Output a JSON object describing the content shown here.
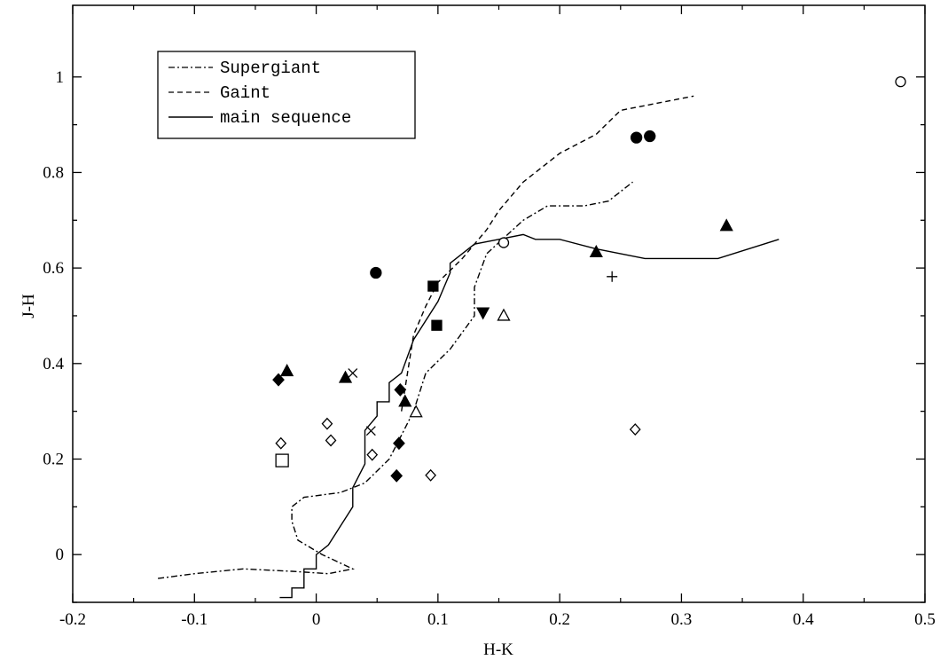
{
  "chart_data": {
    "type": "scatter",
    "xlabel": "H-K",
    "ylabel": "J-H",
    "xlim": [
      -0.2,
      0.5
    ],
    "ylim": [
      -0.1,
      1.15
    ],
    "x_ticks": [
      "-0.2",
      "-0.1",
      "0",
      "0.1",
      "0.2",
      "0.3",
      "0.4",
      "0.5"
    ],
    "y_ticks": [
      "0",
      "0.2",
      "0.4",
      "0.6",
      "0.8",
      "1"
    ],
    "grid": false,
    "legend_position": "top-left",
    "series": [
      {
        "name": "Supergiant",
        "style": "dash-dot",
        "points": [
          [
            -0.13,
            -0.05
          ],
          [
            -0.1,
            -0.04
          ],
          [
            -0.06,
            -0.03
          ],
          [
            -0.02,
            -0.035
          ],
          [
            0.01,
            -0.04
          ],
          [
            0.03,
            -0.03
          ],
          [
            0.005,
            0.0
          ],
          [
            -0.015,
            0.03
          ],
          [
            -0.02,
            0.07
          ],
          [
            -0.02,
            0.1
          ],
          [
            -0.01,
            0.12
          ],
          [
            0.02,
            0.13
          ],
          [
            0.04,
            0.15
          ],
          [
            0.06,
            0.2
          ],
          [
            0.07,
            0.25
          ],
          [
            0.08,
            0.3
          ],
          [
            0.09,
            0.38
          ],
          [
            0.11,
            0.43
          ],
          [
            0.13,
            0.5
          ],
          [
            0.13,
            0.56
          ],
          [
            0.14,
            0.63
          ],
          [
            0.17,
            0.7
          ],
          [
            0.19,
            0.73
          ],
          [
            0.22,
            0.73
          ],
          [
            0.24,
            0.74
          ],
          [
            0.26,
            0.78
          ]
        ]
      },
      {
        "name": "Gaint",
        "style": "dashed",
        "points": [
          [
            0.07,
            0.3
          ],
          [
            0.075,
            0.38
          ],
          [
            0.08,
            0.46
          ],
          [
            0.09,
            0.52
          ],
          [
            0.1,
            0.57
          ],
          [
            0.12,
            0.62
          ],
          [
            0.14,
            0.68
          ],
          [
            0.15,
            0.72
          ],
          [
            0.17,
            0.78
          ],
          [
            0.2,
            0.84
          ],
          [
            0.23,
            0.88
          ],
          [
            0.25,
            0.93
          ],
          [
            0.29,
            0.95
          ],
          [
            0.31,
            0.96
          ]
        ]
      },
      {
        "name": "main sequence",
        "style": "solid",
        "points": [
          [
            -0.03,
            -0.09
          ],
          [
            -0.02,
            -0.09
          ],
          [
            -0.02,
            -0.07
          ],
          [
            -0.01,
            -0.07
          ],
          [
            -0.01,
            -0.03
          ],
          [
            0.0,
            -0.03
          ],
          [
            0.0,
            0.0
          ],
          [
            0.01,
            0.02
          ],
          [
            0.02,
            0.06
          ],
          [
            0.03,
            0.1
          ],
          [
            0.03,
            0.14
          ],
          [
            0.04,
            0.19
          ],
          [
            0.04,
            0.26
          ],
          [
            0.05,
            0.29
          ],
          [
            0.05,
            0.32
          ],
          [
            0.06,
            0.32
          ],
          [
            0.06,
            0.36
          ],
          [
            0.07,
            0.38
          ],
          [
            0.08,
            0.45
          ],
          [
            0.1,
            0.53
          ],
          [
            0.11,
            0.59
          ],
          [
            0.11,
            0.61
          ],
          [
            0.13,
            0.65
          ],
          [
            0.15,
            0.66
          ],
          [
            0.17,
            0.67
          ],
          [
            0.18,
            0.66
          ],
          [
            0.2,
            0.66
          ],
          [
            0.23,
            0.64
          ],
          [
            0.27,
            0.62
          ],
          [
            0.33,
            0.62
          ],
          [
            0.38,
            0.66
          ]
        ]
      }
    ],
    "markers": [
      {
        "symbol": "circle-filled",
        "points": [
          [
            0.049,
            0.59
          ],
          [
            0.263,
            0.873
          ],
          [
            0.274,
            0.876
          ]
        ]
      },
      {
        "symbol": "circle-open",
        "points": [
          [
            0.154,
            0.653
          ],
          [
            0.48,
            0.99
          ]
        ]
      },
      {
        "symbol": "square-filled",
        "points": [
          [
            0.096,
            0.562
          ],
          [
            0.099,
            0.48
          ]
        ]
      },
      {
        "symbol": "square-open",
        "points": [
          [
            -0.028,
            0.197
          ]
        ]
      },
      {
        "symbol": "triangle-up-filled",
        "points": [
          [
            -0.024,
            0.384
          ],
          [
            0.024,
            0.37
          ],
          [
            0.073,
            0.32
          ],
          [
            0.23,
            0.633
          ],
          [
            0.337,
            0.688
          ]
        ]
      },
      {
        "symbol": "triangle-up-open",
        "points": [
          [
            0.154,
            0.5
          ],
          [
            0.082,
            0.298
          ]
        ]
      },
      {
        "symbol": "triangle-down-filled",
        "points": [
          [
            0.137,
            0.507
          ]
        ]
      },
      {
        "symbol": "diamond-filled",
        "points": [
          [
            -0.031,
            0.366
          ],
          [
            0.069,
            0.345
          ],
          [
            0.068,
            0.233
          ],
          [
            0.066,
            0.165
          ]
        ]
      },
      {
        "symbol": "diamond-open",
        "points": [
          [
            -0.029,
            0.233
          ],
          [
            0.009,
            0.274
          ],
          [
            0.012,
            0.239
          ],
          [
            0.046,
            0.209
          ],
          [
            0.094,
            0.166
          ],
          [
            0.262,
            0.262
          ]
        ]
      },
      {
        "symbol": "cross-x",
        "points": [
          [
            0.03,
            0.38
          ],
          [
            0.045,
            0.259
          ]
        ]
      },
      {
        "symbol": "plus",
        "points": [
          [
            0.243,
            0.582
          ]
        ]
      }
    ]
  }
}
